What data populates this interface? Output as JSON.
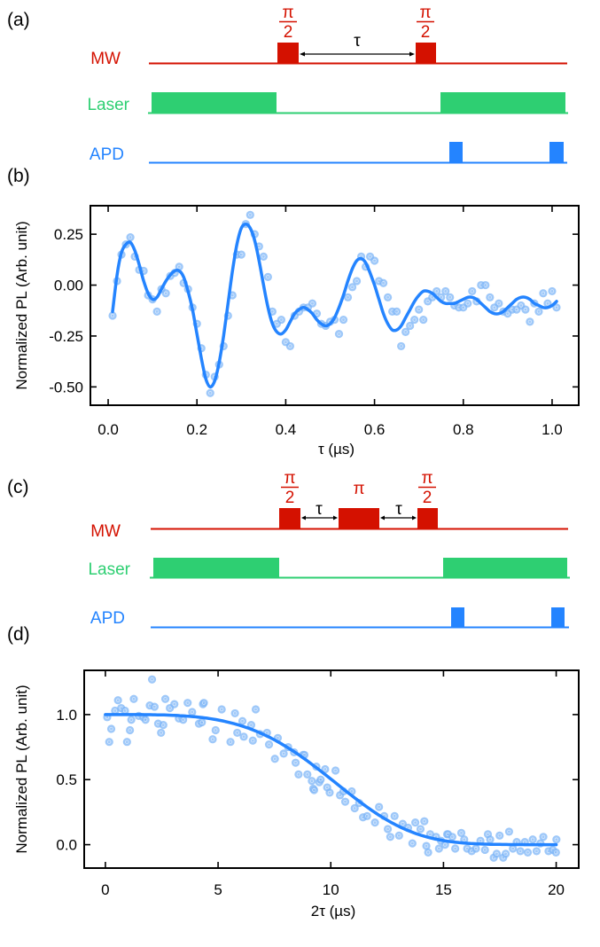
{
  "colors": {
    "mw": "#d41100",
    "laser": "#2ecf72",
    "apd": "#2484ff",
    "marker": "#7db5f7",
    "fit": "#2484ff",
    "arrow": "#000000"
  },
  "panels": {
    "a": {
      "label": "(a)",
      "channels": {
        "mw": "MW",
        "laser": "Laser",
        "apd": "APD"
      },
      "pulses": [
        {
          "name": "pi-half-1",
          "num": "π",
          "den": "2"
        },
        {
          "name": "pi-half-2",
          "num": "π",
          "den": "2"
        }
      ],
      "delay_labels": [
        "τ"
      ]
    },
    "b": {
      "label": "(b)"
    },
    "c": {
      "label": "(c)",
      "channels": {
        "mw": "MW",
        "laser": "Laser",
        "apd": "APD"
      },
      "pulses": [
        {
          "name": "pi-half-1",
          "num": "π",
          "den": "2"
        },
        {
          "name": "pi",
          "num": "π",
          "den": ""
        },
        {
          "name": "pi-half-2",
          "num": "π",
          "den": "2"
        }
      ],
      "delay_labels": [
        "τ",
        "τ"
      ]
    },
    "d": {
      "label": "(d)"
    }
  },
  "chart_data": [
    {
      "id": "b",
      "type": "scatter",
      "title": "",
      "xlabel": "τ (µs)",
      "ylabel": "Normalized PL (Arb. unit)",
      "xlim": [
        -0.04,
        1.06
      ],
      "ylim": [
        -0.59,
        0.39
      ],
      "xticks": [
        0.0,
        0.2,
        0.4,
        0.6,
        0.8,
        1.0
      ],
      "xtick_labels": [
        "0.0",
        "0.2",
        "0.4",
        "0.6",
        "0.8",
        "1.0"
      ],
      "yticks": [
        0.25,
        0.0,
        -0.25,
        -0.5
      ],
      "ytick_labels": [
        "0.25",
        "0.00",
        "-0.25",
        "-0.50"
      ],
      "grid": false,
      "series": [
        {
          "name": "data",
          "kind": "markers",
          "x": [
            0.01,
            0.02,
            0.03,
            0.04,
            0.05,
            0.06,
            0.07,
            0.08,
            0.09,
            0.1,
            0.11,
            0.12,
            0.13,
            0.14,
            0.15,
            0.16,
            0.17,
            0.18,
            0.19,
            0.2,
            0.21,
            0.22,
            0.23,
            0.24,
            0.25,
            0.26,
            0.27,
            0.28,
            0.29,
            0.3,
            0.31,
            0.32,
            0.33,
            0.34,
            0.35,
            0.36,
            0.37,
            0.38,
            0.39,
            0.4,
            0.41,
            0.42,
            0.43,
            0.44,
            0.45,
            0.46,
            0.47,
            0.48,
            0.49,
            0.5,
            0.51,
            0.52,
            0.53,
            0.54,
            0.55,
            0.56,
            0.57,
            0.58,
            0.59,
            0.6,
            0.61,
            0.62,
            0.63,
            0.64,
            0.65,
            0.66,
            0.67,
            0.68,
            0.69,
            0.7,
            0.71,
            0.72,
            0.73,
            0.74,
            0.75,
            0.76,
            0.77,
            0.78,
            0.79,
            0.8,
            0.81,
            0.82,
            0.83,
            0.84,
            0.85,
            0.86,
            0.87,
            0.88,
            0.89,
            0.9,
            0.91,
            0.92,
            0.93,
            0.94,
            0.95,
            0.96,
            0.97,
            0.98,
            0.99,
            1.0,
            1.01
          ],
          "y": [
            -0.15,
            0.02,
            0.15,
            0.2,
            0.235,
            0.14,
            0.075,
            0.07,
            -0.05,
            -0.07,
            -0.13,
            -0.02,
            -0.04,
            0.045,
            0.06,
            0.09,
            0.01,
            -0.02,
            -0.11,
            -0.19,
            -0.31,
            -0.44,
            -0.53,
            -0.45,
            -0.39,
            -0.3,
            -0.15,
            -0.05,
            0.15,
            0.15,
            0.3,
            0.345,
            0.25,
            0.19,
            0.14,
            0.04,
            -0.13,
            -0.19,
            -0.17,
            -0.28,
            -0.3,
            -0.15,
            -0.13,
            -0.11,
            -0.11,
            -0.09,
            -0.14,
            -0.19,
            -0.2,
            -0.18,
            -0.17,
            -0.24,
            -0.17,
            -0.06,
            -0.01,
            0.02,
            0.14,
            0.09,
            0.14,
            0.12,
            0.02,
            0.01,
            -0.06,
            -0.13,
            -0.13,
            -0.3,
            -0.23,
            -0.2,
            -0.17,
            -0.12,
            -0.17,
            -0.08,
            -0.06,
            -0.03,
            -0.06,
            -0.03,
            -0.06,
            -0.1,
            -0.11,
            -0.11,
            -0.09,
            -0.03,
            -0.08,
            0.0,
            0.0,
            -0.06,
            -0.11,
            -0.09,
            -0.13,
            -0.14,
            -0.12,
            -0.12,
            -0.1,
            -0.12,
            -0.18,
            -0.09,
            -0.13,
            -0.04,
            -0.09,
            -0.03,
            -0.11
          ]
        },
        {
          "name": "fit",
          "kind": "line",
          "x": [
            0.01,
            0.02,
            0.03,
            0.04,
            0.05,
            0.06,
            0.07,
            0.08,
            0.09,
            0.1,
            0.11,
            0.12,
            0.13,
            0.14,
            0.15,
            0.16,
            0.17,
            0.18,
            0.19,
            0.2,
            0.21,
            0.22,
            0.23,
            0.24,
            0.25,
            0.26,
            0.27,
            0.28,
            0.29,
            0.3,
            0.31,
            0.32,
            0.33,
            0.34,
            0.35,
            0.36,
            0.37,
            0.38,
            0.39,
            0.4,
            0.41,
            0.42,
            0.43,
            0.44,
            0.45,
            0.46,
            0.47,
            0.48,
            0.49,
            0.5,
            0.51,
            0.52,
            0.53,
            0.54,
            0.55,
            0.56,
            0.57,
            0.58,
            0.59,
            0.6,
            0.61,
            0.62,
            0.63,
            0.64,
            0.65,
            0.66,
            0.67,
            0.68,
            0.69,
            0.7,
            0.71,
            0.72,
            0.73,
            0.74,
            0.75,
            0.76,
            0.77,
            0.78,
            0.79,
            0.8,
            0.81,
            0.82,
            0.83,
            0.84,
            0.85,
            0.86,
            0.87,
            0.88,
            0.89,
            0.9,
            0.91,
            0.92,
            0.93,
            0.94,
            0.95,
            0.96,
            0.97,
            0.98,
            0.99,
            1.0,
            1.01
          ],
          "y": [
            -0.13,
            0.05,
            0.16,
            0.2,
            0.21,
            0.17,
            0.1,
            0.02,
            -0.04,
            -0.07,
            -0.06,
            -0.02,
            0.02,
            0.05,
            0.07,
            0.07,
            0.04,
            -0.03,
            -0.12,
            -0.24,
            -0.36,
            -0.46,
            -0.5,
            -0.47,
            -0.38,
            -0.25,
            -0.09,
            0.07,
            0.2,
            0.28,
            0.3,
            0.28,
            0.22,
            0.12,
            0.0,
            -0.11,
            -0.19,
            -0.23,
            -0.24,
            -0.22,
            -0.18,
            -0.14,
            -0.12,
            -0.11,
            -0.12,
            -0.14,
            -0.17,
            -0.19,
            -0.2,
            -0.19,
            -0.16,
            -0.11,
            -0.05,
            0.02,
            0.08,
            0.12,
            0.13,
            0.11,
            0.06,
            0.0,
            -0.07,
            -0.14,
            -0.19,
            -0.22,
            -0.22,
            -0.2,
            -0.16,
            -0.12,
            -0.08,
            -0.05,
            -0.03,
            -0.03,
            -0.04,
            -0.06,
            -0.08,
            -0.09,
            -0.09,
            -0.09,
            -0.08,
            -0.07,
            -0.06,
            -0.06,
            -0.07,
            -0.09,
            -0.11,
            -0.13,
            -0.14,
            -0.14,
            -0.13,
            -0.11,
            -0.09,
            -0.07,
            -0.06,
            -0.06,
            -0.07,
            -0.09,
            -0.1,
            -0.11,
            -0.11,
            -0.1,
            -0.08
          ]
        }
      ]
    },
    {
      "id": "d",
      "type": "scatter",
      "title": "",
      "xlabel": "2τ (µs)",
      "ylabel": "Normalized PL (Arb. unit)",
      "xlim": [
        -0.94,
        21.0
      ],
      "ylim": [
        -0.18,
        1.34
      ],
      "xticks": [
        0,
        5,
        10,
        15,
        20
      ],
      "xtick_labels": [
        "0",
        "5",
        "10",
        "15",
        "20"
      ],
      "yticks": [
        1.0,
        0.5,
        0.0
      ],
      "ytick_labels": [
        "1.0",
        "0.5",
        "0.0"
      ],
      "grid": false,
      "series": [
        {
          "name": "data",
          "kind": "markers",
          "x": [
            0.08,
            0.17,
            0.26,
            0.43,
            0.56,
            0.7,
            0.87,
            0.96,
            1.09,
            1.15,
            1.26,
            1.48,
            1.68,
            1.78,
            1.97,
            2.07,
            2.18,
            2.34,
            2.47,
            2.57,
            2.66,
            2.86,
            3.06,
            3.26,
            3.45,
            3.65,
            3.85,
            4.15,
            4.28,
            4.33,
            4.37,
            4.76,
            4.89,
            5.16,
            5.55,
            5.75,
            5.85,
            6.08,
            6.14,
            6.47,
            6.54,
            6.67,
            6.86,
            7.17,
            7.26,
            7.52,
            7.65,
            7.91,
            8.11,
            8.37,
            8.44,
            8.57,
            8.77,
            8.83,
            8.96,
            9.16,
            9.22,
            9.26,
            9.36,
            9.49,
            9.55,
            9.75,
            9.84,
            9.95,
            10.21,
            10.41,
            10.56,
            10.64,
            10.93,
            11.06,
            11.26,
            11.43,
            11.61,
            11.96,
            12.14,
            12.37,
            12.53,
            12.64,
            12.83,
            13.03,
            13.19,
            13.43,
            13.62,
            13.75,
            13.98,
            14.15,
            14.24,
            14.32,
            14.41,
            14.67,
            14.8,
            14.89,
            15.07,
            15.16,
            15.2,
            15.39,
            15.52,
            15.79,
            15.92,
            16.05,
            16.25,
            16.44,
            16.64,
            16.84,
            16.97,
            17.07,
            17.23,
            17.36,
            17.49,
            17.65,
            17.76,
            17.91,
            18.08,
            18.25,
            18.41,
            18.61,
            18.74,
            18.96,
            19.13,
            19.3,
            19.43,
            19.66,
            19.85,
            19.99,
            20.01
          ],
          "y": [
            0.98,
            0.79,
            0.89,
            1.03,
            1.11,
            1.05,
            1.03,
            0.79,
            0.88,
            0.96,
            1.12,
            0.99,
            0.98,
            0.96,
            1.07,
            1.27,
            1.06,
            0.93,
            0.86,
            0.92,
            1.12,
            1.05,
            1.08,
            0.97,
            0.96,
            1.09,
            1.02,
            0.93,
            0.94,
            1.08,
            1.09,
            0.81,
            0.88,
            1.04,
            0.79,
            1.01,
            0.86,
            0.95,
            0.83,
            0.92,
            0.8,
            1.04,
            0.85,
            0.86,
            0.77,
            0.66,
            0.82,
            0.7,
            0.75,
            0.71,
            0.63,
            0.54,
            0.69,
            0.69,
            0.54,
            0.49,
            0.43,
            0.42,
            0.6,
            0.48,
            0.5,
            0.58,
            0.44,
            0.4,
            0.57,
            0.38,
            0.41,
            0.33,
            0.41,
            0.28,
            0.32,
            0.21,
            0.22,
            0.17,
            0.29,
            0.22,
            0.12,
            0.06,
            0.22,
            0.07,
            0.16,
            0.13,
            0.01,
            0.17,
            0.12,
            0.18,
            -0.01,
            -0.06,
            0.08,
            0.06,
            -0.03,
            0.03,
            0.0,
            0.08,
            0.08,
            0.06,
            -0.03,
            0.09,
            0.04,
            -0.03,
            -0.05,
            -0.03,
            0.03,
            -0.04,
            0.08,
            0.04,
            -0.1,
            -0.07,
            0.07,
            -0.1,
            -0.07,
            0.1,
            -0.03,
            0.02,
            -0.05,
            0.02,
            -0.06,
            0.04,
            -0.05,
            0.01,
            0.06,
            -0.05,
            -0.04,
            -0.06,
            0.04
          ]
        },
        {
          "name": "fit",
          "kind": "line",
          "model": "exp(-(x/11)^4)",
          "x": [
            0,
            1,
            2,
            3,
            4,
            5,
            6,
            7,
            8,
            9,
            10,
            11,
            12,
            13,
            14,
            15,
            16,
            17,
            18,
            19,
            20
          ],
          "y": [
            1.0,
            1.0,
            1.0,
            0.99,
            0.98,
            0.96,
            0.92,
            0.85,
            0.76,
            0.64,
            0.51,
            0.37,
            0.24,
            0.14,
            0.07,
            0.03,
            0.01,
            0.0,
            0.0,
            0.0,
            0.0
          ]
        }
      ]
    }
  ]
}
